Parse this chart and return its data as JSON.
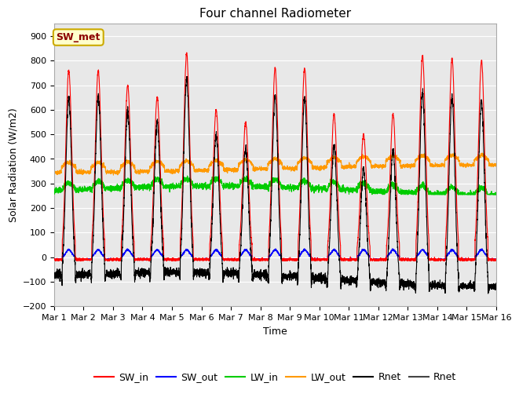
{
  "title": "Four channel Radiometer",
  "xlabel": "Time",
  "ylabel": "Solar Radiation (W/m2)",
  "ylim": [
    -200,
    950
  ],
  "yticks": [
    -200,
    -100,
    0,
    100,
    200,
    300,
    400,
    500,
    600,
    700,
    800,
    900
  ],
  "xtick_labels": [
    "Mar 1",
    "Mar 2",
    "Mar 3",
    "Mar 4",
    "Mar 5",
    "Mar 6",
    "Mar 7",
    "Mar 8",
    "Mar 9",
    "Mar 10",
    "Mar 11",
    "Mar 12",
    "Mar 13",
    "Mar 14",
    "Mar 15",
    "Mar 16"
  ],
  "n_days": 15,
  "title_fontsize": 11,
  "label_fontsize": 9,
  "tick_fontsize": 8,
  "legend_fontsize": 9,
  "SW_met_box_color": "#ffffcc",
  "SW_met_text_color": "#8b0000",
  "SW_met_border_color": "#ccaa00",
  "colors": {
    "SW_in": "#ff0000",
    "SW_out": "#0000ff",
    "LW_in": "#00cc00",
    "LW_out": "#ff9900",
    "Rnet_black": "#000000",
    "Rnet_dark": "#444444"
  },
  "bg_color": "#e8e8e8",
  "grid_color": "#ffffff",
  "linewidth": 0.8
}
